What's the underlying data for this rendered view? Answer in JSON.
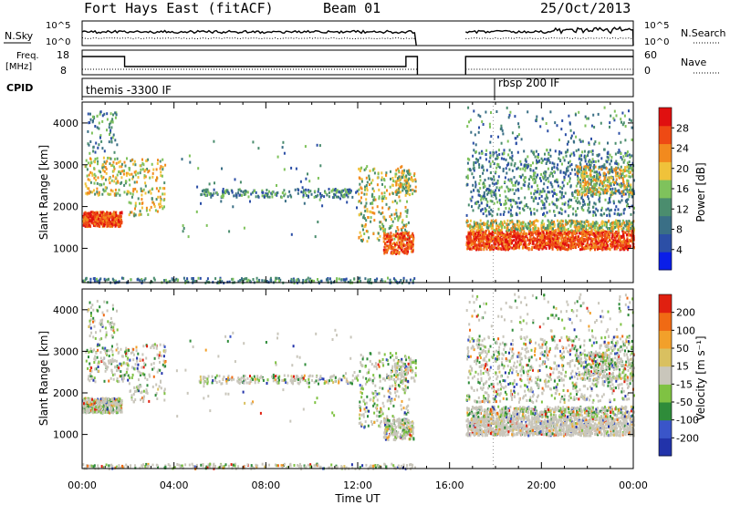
{
  "header": {
    "station": "Fort Hays East (fitACF)",
    "beam": "Beam 01",
    "date": "25/Oct/2013"
  },
  "strips": {
    "nsky_label": "N.Sky",
    "nsky_ticks": [
      "10^5",
      "10^0"
    ],
    "nsearch_label": "N.Search",
    "nsearch_ticks": [
      "10^5",
      "10^0"
    ],
    "freq_label_1": "Freq.",
    "freq_label_2": "[MHz]",
    "freq_ticks": [
      "18",
      "8"
    ],
    "nave_label": "Nave",
    "nave_ticks": [
      "60",
      "0"
    ],
    "cpid_label": "CPID",
    "cpid_1": "themis -3300 IF",
    "cpid_2": "rbsp 200 IF"
  },
  "colors": {
    "power": [
      "#0a1ee8",
      "#2c4fa6",
      "#3a6f86",
      "#4b8d6e",
      "#7fc25c",
      "#f0c23a",
      "#f28a1e",
      "#ee4a14",
      "#e01010"
    ],
    "velocity": [
      "#2233aa",
      "#3a55c9",
      "#2f8c3a",
      "#7fc243",
      "#c9c6bb",
      "#d9c060",
      "#f2a02a",
      "#f06a14",
      "#e02010"
    ]
  },
  "chart_data": [
    {
      "type": "heatmap",
      "name": "power",
      "xlabel": "",
      "ylabel": "Slant Range [km]",
      "colorbar_label": "Power [dB]",
      "colorbar_ticks": [
        "28",
        "24",
        "20",
        "16",
        "12",
        "8",
        "4"
      ],
      "x_ticks": [
        "00:00",
        "04:00",
        "08:00",
        "12:00",
        "16:00",
        "20:00",
        "00:00"
      ],
      "y_ticks": [
        "4000",
        "3000",
        "2000",
        "1000"
      ],
      "ylim": [
        180,
        4500
      ]
    },
    {
      "type": "heatmap",
      "name": "velocity",
      "xlabel": "Time UT",
      "ylabel": "Slant Range [km]",
      "colorbar_label": "Velocity [m s⁻¹]",
      "colorbar_ticks": [
        "200",
        "100",
        "50",
        "15",
        "-15",
        "-50",
        "-100",
        "-200"
      ],
      "x_ticks": [
        "00:00",
        "04:00",
        "08:00",
        "12:00",
        "16:00",
        "20:00",
        "00:00"
      ],
      "y_ticks": [
        "4000",
        "3000",
        "2000",
        "1000"
      ],
      "ylim": [
        180,
        4500
      ]
    }
  ]
}
